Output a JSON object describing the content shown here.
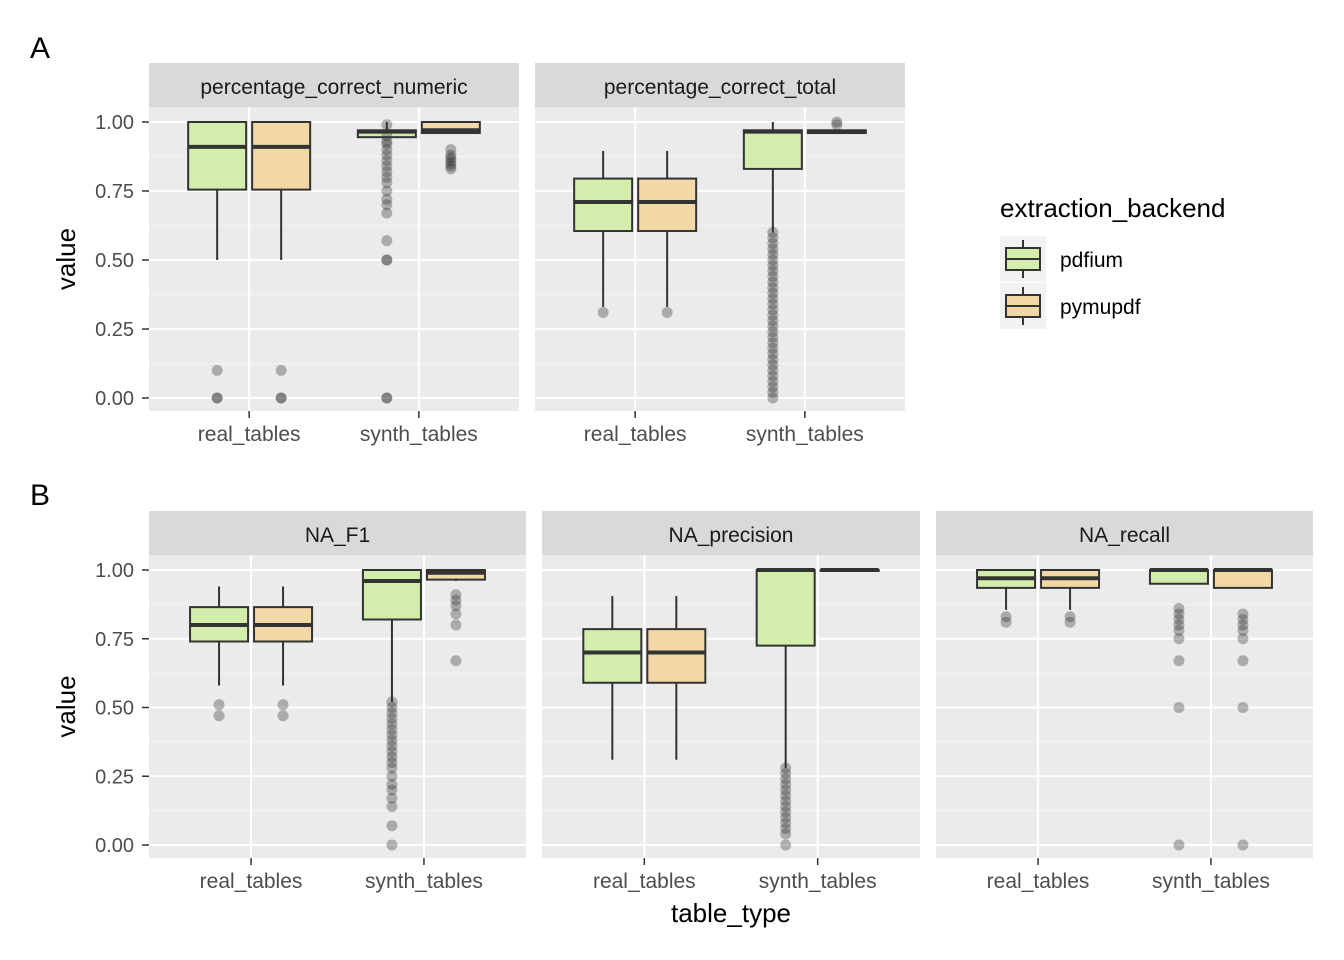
{
  "chart_data": {
    "type": "boxplot",
    "y_axis_label": "value",
    "x_axis_label": "table_type",
    "ylim": [
      0,
      1.0
    ],
    "y_ticks": [
      "0.00",
      "0.25",
      "0.50",
      "0.75",
      "1.00"
    ],
    "categories": [
      "real_tables",
      "synth_tables"
    ],
    "legend": {
      "title": "extraction_backend",
      "placement": "right",
      "entries": [
        {
          "name": "pdfium",
          "color": "#d3edad"
        },
        {
          "name": "pymupdf",
          "color": "#f3d8a7"
        }
      ]
    },
    "panel_letters": [
      "A",
      "B"
    ],
    "rows": [
      {
        "letter": "A",
        "panels": [
          {
            "title": "percentage_correct_numeric",
            "groups": [
              {
                "category": "real_tables",
                "series": "pdfium",
                "min": 0.5,
                "q1": 0.755,
                "median": 0.91,
                "q3": 1.0,
                "max": 1.0,
                "outliers": [
                  0.1,
                  0.0,
                  0.0
                ]
              },
              {
                "category": "real_tables",
                "series": "pymupdf",
                "min": 0.5,
                "q1": 0.755,
                "median": 0.91,
                "q3": 1.0,
                "max": 1.0,
                "outliers": [
                  0.1,
                  0.0,
                  0.0
                ]
              },
              {
                "category": "synth_tables",
                "series": "pdfium",
                "min": 0.945,
                "q1": 0.945,
                "median": 0.965,
                "q3": 0.97,
                "max": 1.0,
                "outliers": [
                  0.99,
                  0.95,
                  0.93,
                  0.92,
                  0.9,
                  0.88,
                  0.86,
                  0.84,
                  0.82,
                  0.8,
                  0.78,
                  0.75,
                  0.72,
                  0.7,
                  0.67,
                  0.57,
                  0.5,
                  0.5,
                  0.0,
                  0.0
                ]
              },
              {
                "category": "synth_tables",
                "series": "pymupdf",
                "min": 0.96,
                "q1": 0.96,
                "median": 0.97,
                "q3": 1.0,
                "max": 1.0,
                "outliers": [
                  0.9,
                  0.88,
                  0.87,
                  0.86,
                  0.85,
                  0.84,
                  0.83
                ]
              }
            ]
          },
          {
            "title": "percentage_correct_total",
            "groups": [
              {
                "category": "real_tables",
                "series": "pdfium",
                "min": 0.33,
                "q1": 0.605,
                "median": 0.71,
                "q3": 0.795,
                "max": 0.895,
                "outliers": [
                  0.31
                ]
              },
              {
                "category": "real_tables",
                "series": "pymupdf",
                "min": 0.33,
                "q1": 0.605,
                "median": 0.71,
                "q3": 0.795,
                "max": 0.895,
                "outliers": [
                  0.31
                ]
              },
              {
                "category": "synth_tables",
                "series": "pdfium",
                "min": 0.6,
                "q1": 0.83,
                "median": 0.965,
                "q3": 0.97,
                "max": 1.0,
                "outliers": [
                  0.6,
                  0.58,
                  0.56,
                  0.54,
                  0.52,
                  0.5,
                  0.48,
                  0.46,
                  0.44,
                  0.42,
                  0.4,
                  0.38,
                  0.36,
                  0.34,
                  0.32,
                  0.3,
                  0.28,
                  0.26,
                  0.24,
                  0.22,
                  0.2,
                  0.18,
                  0.16,
                  0.14,
                  0.12,
                  0.1,
                  0.08,
                  0.06,
                  0.04,
                  0.02,
                  0.0
                ]
              },
              {
                "category": "synth_tables",
                "series": "pymupdf",
                "min": 0.96,
                "q1": 0.96,
                "median": 0.965,
                "q3": 0.97,
                "max": 0.97,
                "outliers": [
                  1.0,
                  0.99
                ]
              }
            ]
          }
        ]
      },
      {
        "letter": "B",
        "panels": [
          {
            "title": "NA_F1",
            "groups": [
              {
                "category": "real_tables",
                "series": "pdfium",
                "min": 0.58,
                "q1": 0.74,
                "median": 0.8,
                "q3": 0.865,
                "max": 0.94,
                "outliers": [
                  0.51,
                  0.47
                ]
              },
              {
                "category": "real_tables",
                "series": "pymupdf",
                "min": 0.58,
                "q1": 0.74,
                "median": 0.8,
                "q3": 0.865,
                "max": 0.94,
                "outliers": [
                  0.51,
                  0.47
                ]
              },
              {
                "category": "synth_tables",
                "series": "pdfium",
                "min": 0.52,
                "q1": 0.82,
                "median": 0.96,
                "q3": 1.0,
                "max": 1.0,
                "outliers": [
                  0.52,
                  0.5,
                  0.48,
                  0.46,
                  0.44,
                  0.42,
                  0.4,
                  0.38,
                  0.36,
                  0.34,
                  0.32,
                  0.3,
                  0.28,
                  0.25,
                  0.22,
                  0.2,
                  0.17,
                  0.14,
                  0.07,
                  0.0
                ]
              },
              {
                "category": "synth_tables",
                "series": "pymupdf",
                "min": 0.96,
                "q1": 0.965,
                "median": 0.99,
                "q3": 1.0,
                "max": 1.0,
                "outliers": [
                  0.91,
                  0.89,
                  0.87,
                  0.84,
                  0.8,
                  0.67
                ]
              }
            ]
          },
          {
            "title": "NA_precision",
            "groups": [
              {
                "category": "real_tables",
                "series": "pdfium",
                "min": 0.31,
                "q1": 0.59,
                "median": 0.7,
                "q3": 0.785,
                "max": 0.905,
                "outliers": []
              },
              {
                "category": "real_tables",
                "series": "pymupdf",
                "min": 0.31,
                "q1": 0.59,
                "median": 0.7,
                "q3": 0.785,
                "max": 0.905,
                "outliers": []
              },
              {
                "category": "synth_tables",
                "series": "pdfium",
                "min": 0.28,
                "q1": 0.725,
                "median": 1.0,
                "q3": 1.0,
                "max": 1.0,
                "outliers": [
                  0.28,
                  0.26,
                  0.24,
                  0.22,
                  0.2,
                  0.18,
                  0.16,
                  0.14,
                  0.12,
                  0.1,
                  0.08,
                  0.06,
                  0.04,
                  0.0
                ]
              },
              {
                "category": "synth_tables",
                "series": "pymupdf",
                "min": 1.0,
                "q1": 1.0,
                "median": 1.0,
                "q3": 1.0,
                "max": 1.0,
                "outliers": []
              }
            ]
          },
          {
            "title": "NA_recall",
            "groups": [
              {
                "category": "real_tables",
                "series": "pdfium",
                "min": 0.855,
                "q1": 0.935,
                "median": 0.97,
                "q3": 1.0,
                "max": 1.0,
                "outliers": [
                  0.83,
                  0.81
                ]
              },
              {
                "category": "real_tables",
                "series": "pymupdf",
                "min": 0.855,
                "q1": 0.935,
                "median": 0.97,
                "q3": 1.0,
                "max": 1.0,
                "outliers": [
                  0.83,
                  0.81
                ]
              },
              {
                "category": "synth_tables",
                "series": "pdfium",
                "min": 0.95,
                "q1": 0.95,
                "median": 1.0,
                "q3": 1.0,
                "max": 1.0,
                "outliers": [
                  0.86,
                  0.84,
                  0.82,
                  0.8,
                  0.78,
                  0.75,
                  0.67,
                  0.5,
                  0.0
                ]
              },
              {
                "category": "synth_tables",
                "series": "pymupdf",
                "min": 0.935,
                "q1": 0.935,
                "median": 1.0,
                "q3": 1.0,
                "max": 1.0,
                "outliers": [
                  0.84,
                  0.82,
                  0.8,
                  0.78,
                  0.75,
                  0.67,
                  0.5,
                  0.0
                ]
              }
            ]
          }
        ]
      }
    ]
  }
}
